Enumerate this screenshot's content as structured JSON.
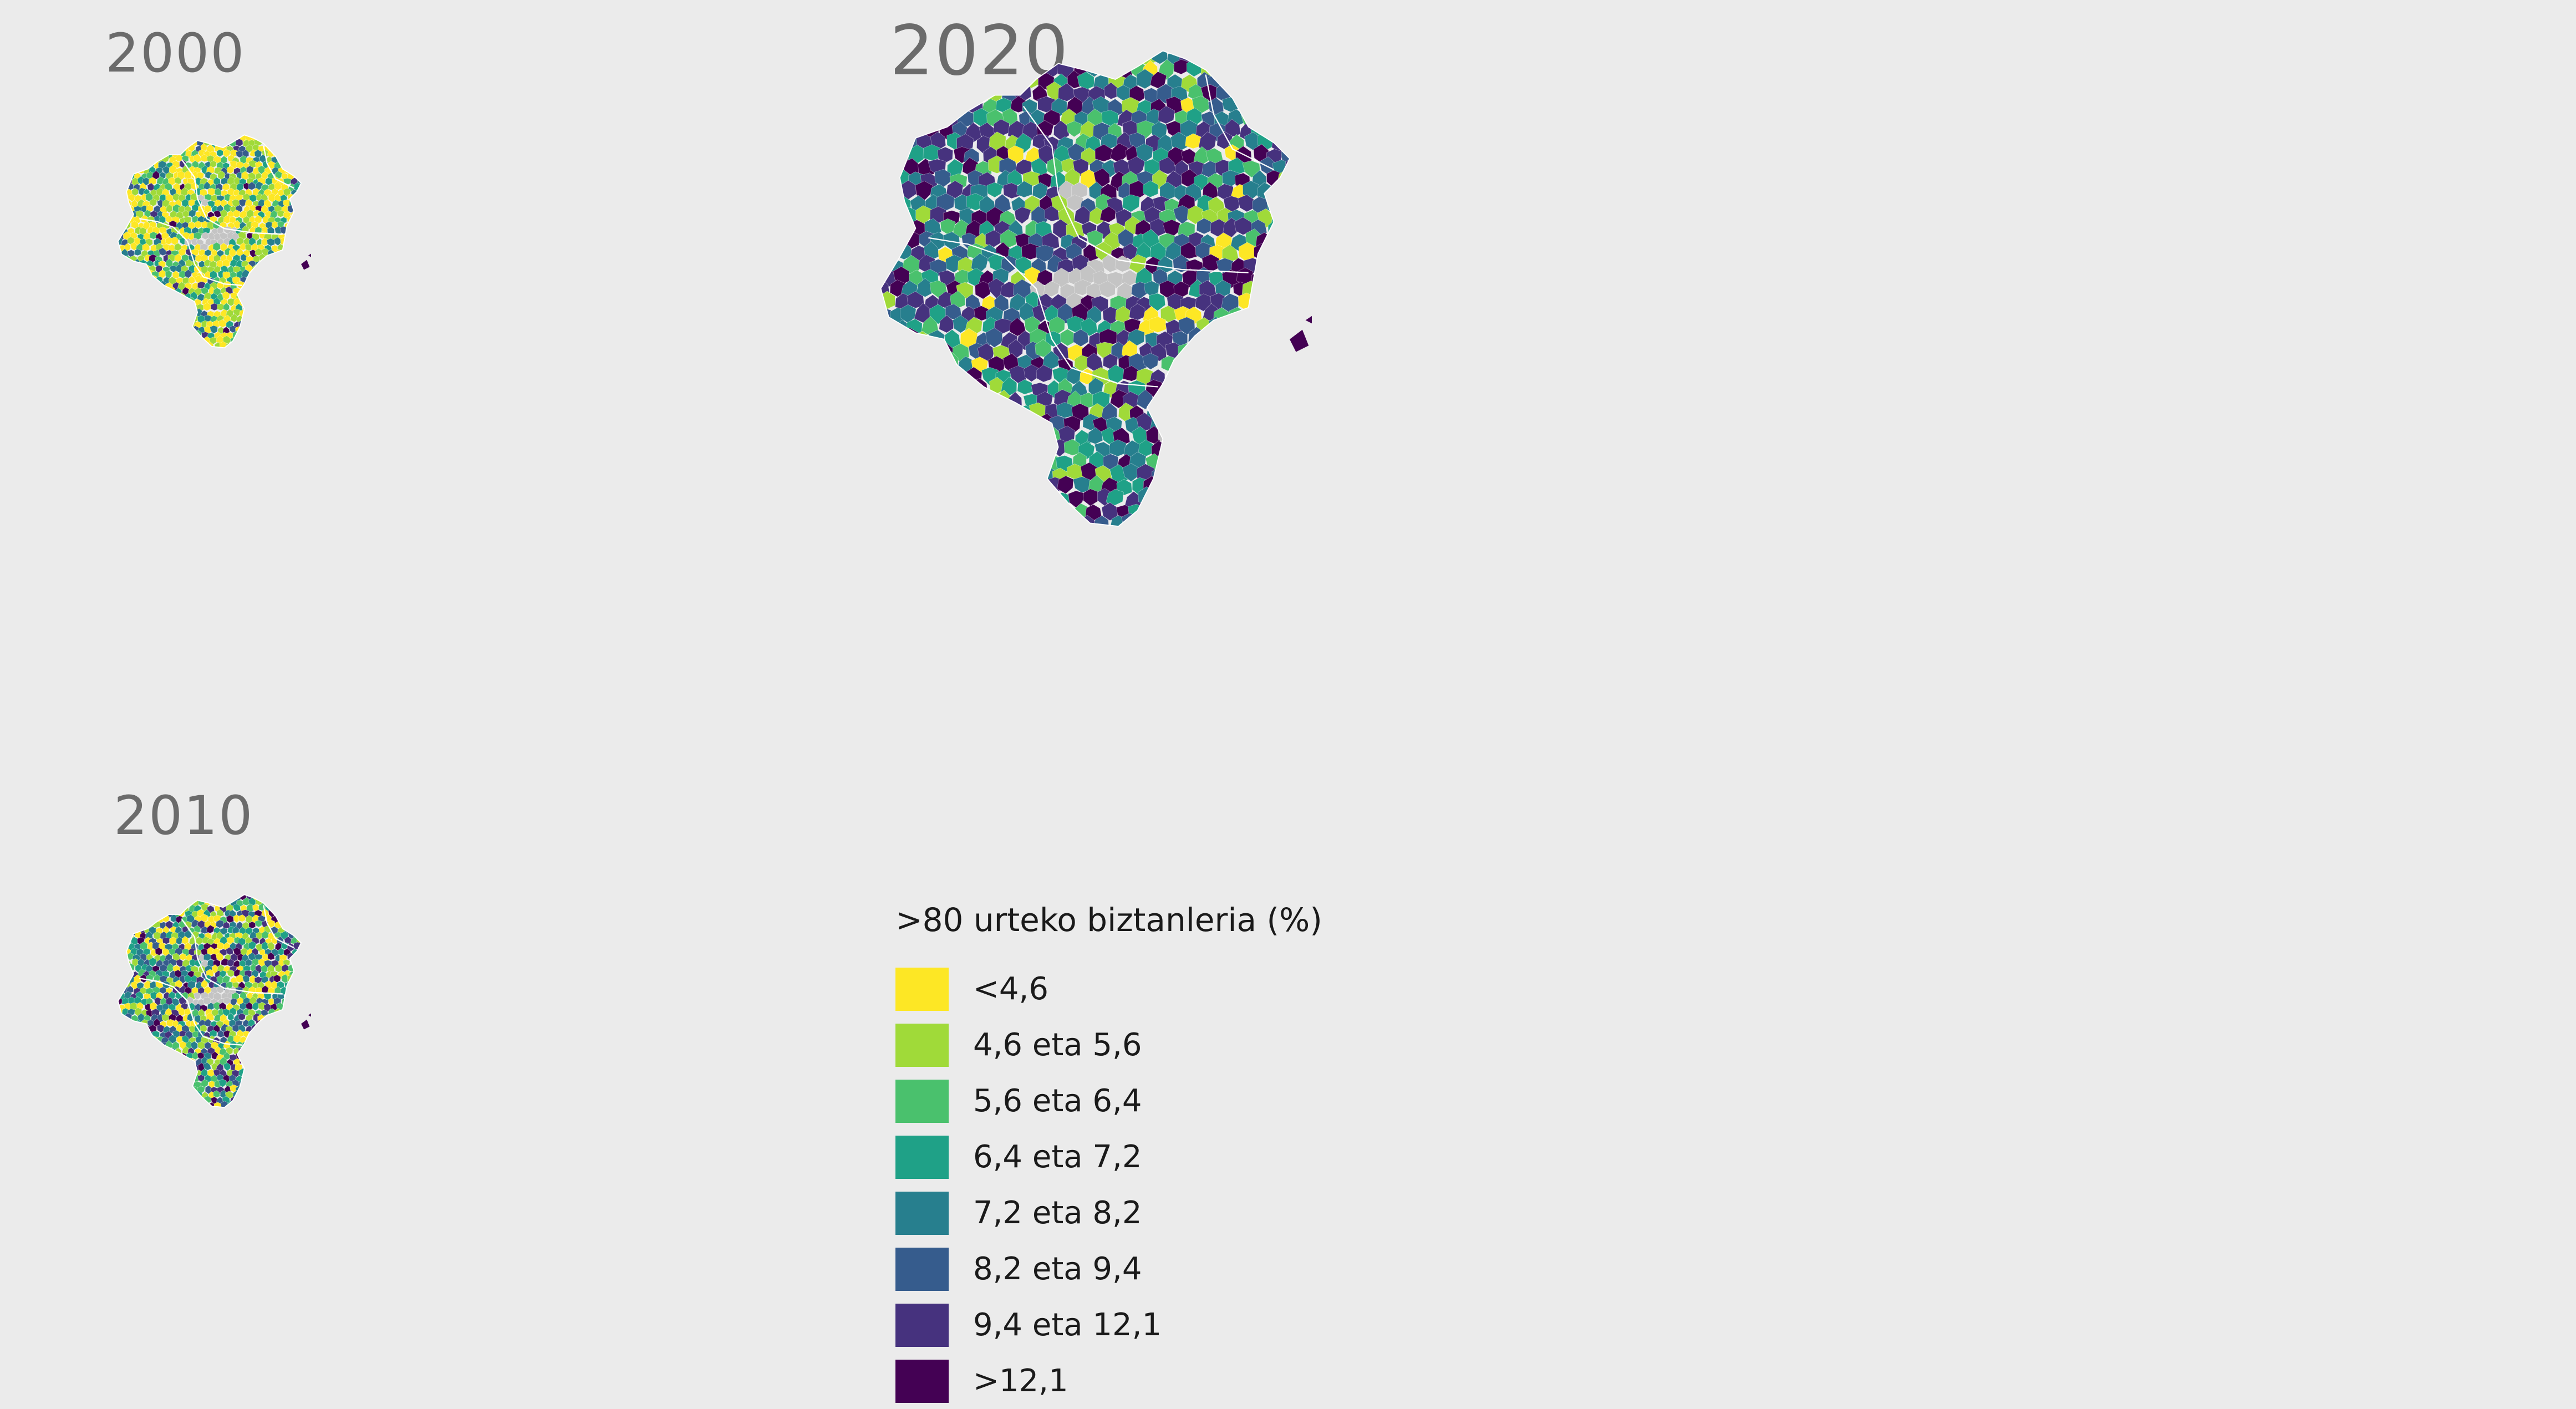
{
  "maps": [
    {
      "id": "map2000",
      "title": "2000",
      "scale": 1.3,
      "weights": [
        0.42,
        0.22,
        0.12,
        0.09,
        0.07,
        0.04,
        0.025,
        0.015
      ]
    },
    {
      "id": "map2010",
      "title": "2010",
      "scale": 1.3,
      "weights": [
        0.16,
        0.16,
        0.13,
        0.12,
        0.12,
        0.1,
        0.13,
        0.08
      ]
    },
    {
      "id": "map2020",
      "title": "2020",
      "scale": 3.0,
      "weights": [
        0.05,
        0.1,
        0.1,
        0.12,
        0.14,
        0.14,
        0.18,
        0.17
      ]
    }
  ],
  "nodata_color": "#c4c4c4",
  "legend": {
    "title": ">80 urteko biztanleria (%)",
    "items": [
      {
        "label": "<4,6",
        "color": "#fde725"
      },
      {
        "label": "4,6 eta 5,6",
        "color": "#a0da39"
      },
      {
        "label": "5,6 eta 6,4",
        "color": "#4ac16d"
      },
      {
        "label": "6,4 eta 7,2",
        "color": "#1fa187"
      },
      {
        "label": "7,2 eta 8,2",
        "color": "#277f8e"
      },
      {
        "label": "8,2 eta 9,4",
        "color": "#365c8d"
      },
      {
        "label": "9,4 eta 12,1",
        "color": "#46327e"
      },
      {
        "label": ">12,1",
        "color": "#440154"
      }
    ]
  }
}
